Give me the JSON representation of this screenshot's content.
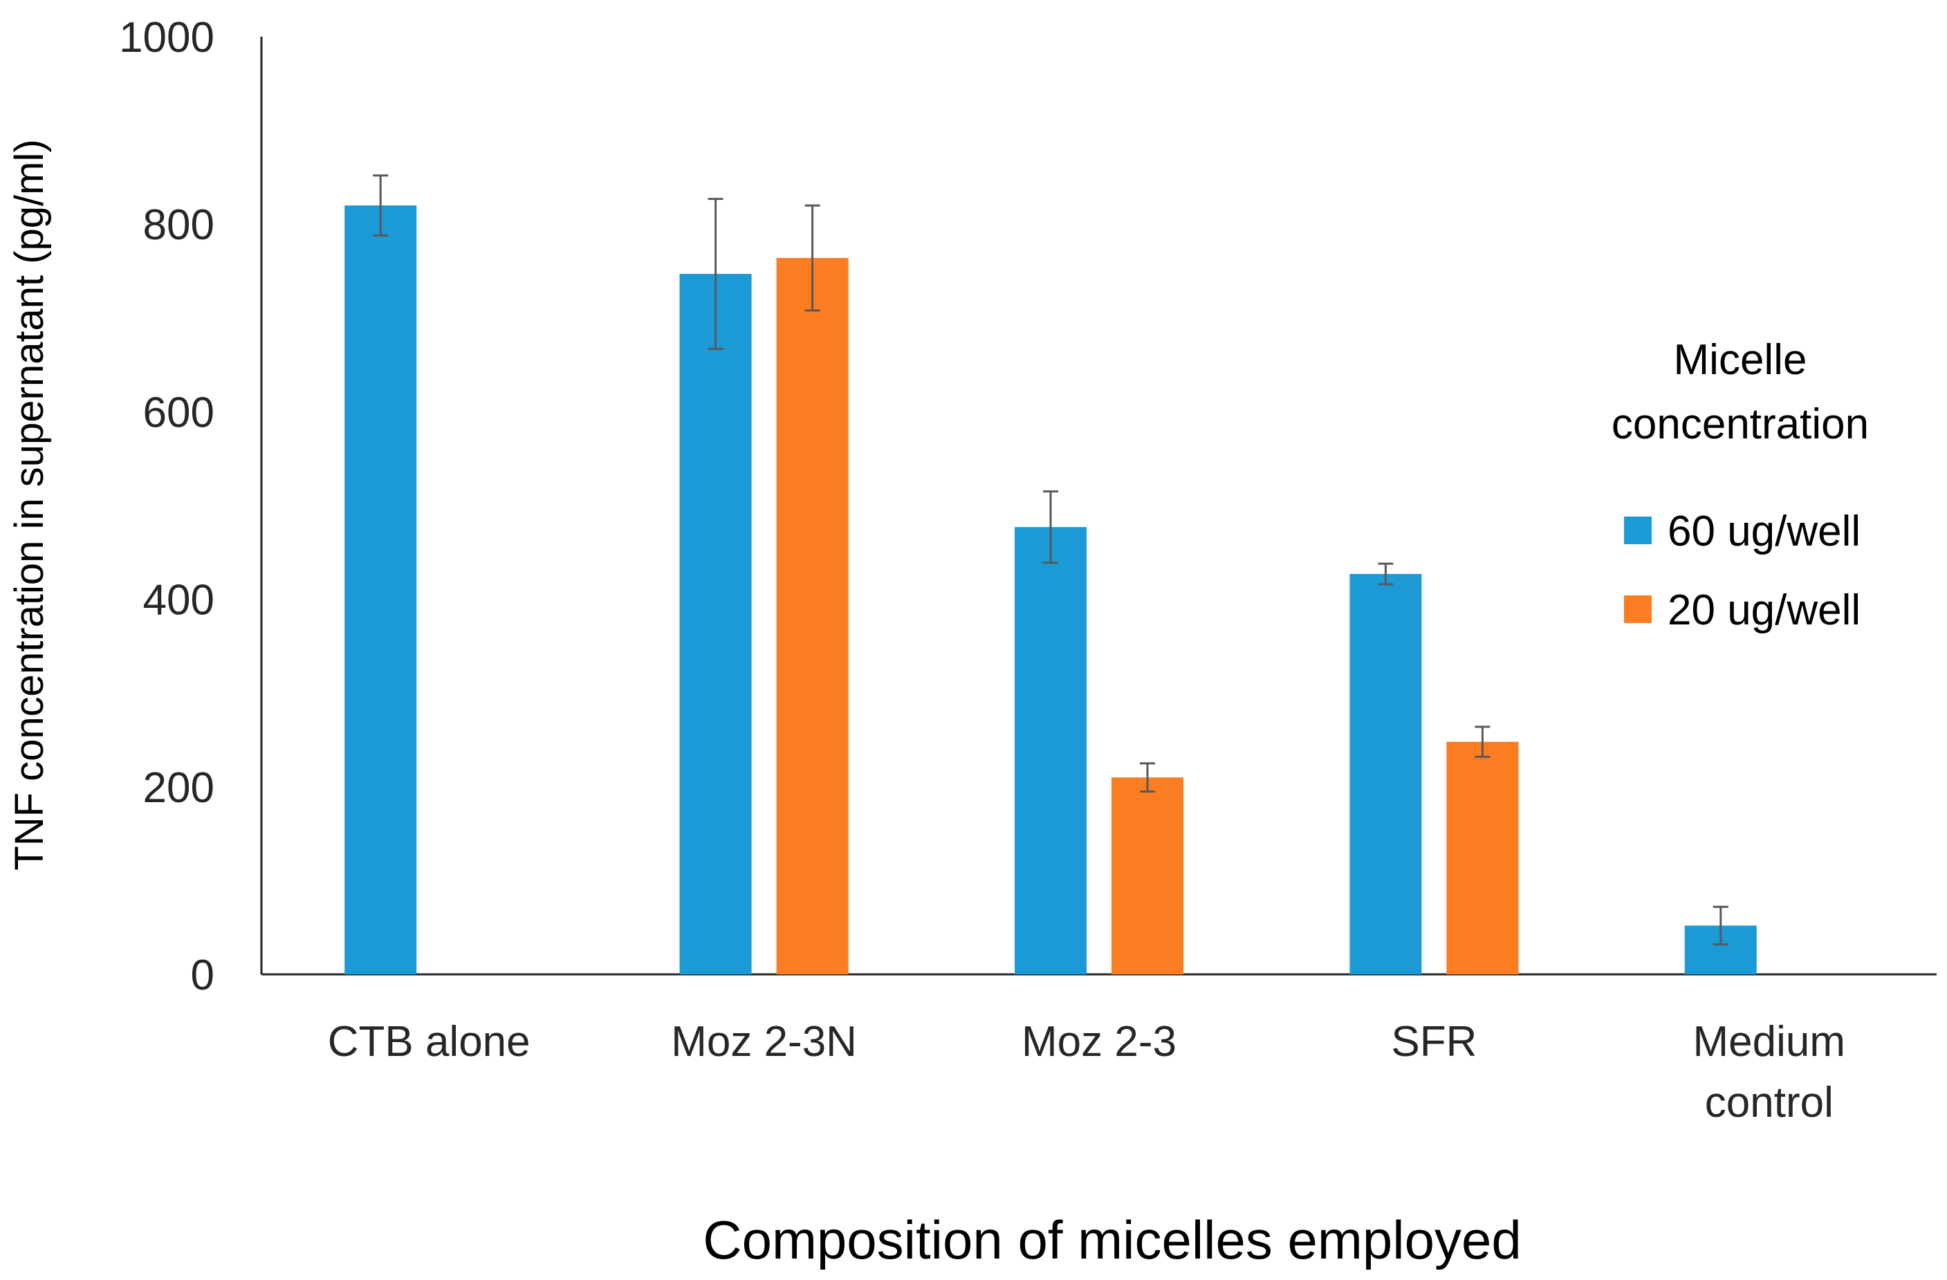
{
  "chart_data": {
    "type": "bar",
    "title": "",
    "xlabel": "Composition of micelles employed",
    "ylabel": "TNF concentration in supernatant (pg/ml)",
    "ylim": [
      0,
      1000
    ],
    "yticks": [
      0,
      200,
      400,
      600,
      800,
      1000
    ],
    "yticks_labels": [
      "0",
      "200",
      "400",
      "600",
      "800",
      "1000"
    ],
    "categories": [
      "CTB alone",
      "Moz 2-3N",
      "Moz 2-3",
      "SFR",
      "Medium control"
    ],
    "category_lines": [
      [
        "CTB alone"
      ],
      [
        "Moz 2-3N"
      ],
      [
        "Moz 2-3"
      ],
      [
        "SFR"
      ],
      [
        "Medium",
        "control"
      ]
    ],
    "series": [
      {
        "name": "60 ug/well",
        "color": "#1b9ad6",
        "values": [
          820,
          747,
          477,
          427,
          52
        ],
        "errors": [
          32,
          80,
          38,
          11,
          20
        ]
      },
      {
        "name": "20 ug/well",
        "color": "#fb7d22",
        "values": [
          null,
          764,
          210,
          248,
          null
        ],
        "errors": [
          null,
          56,
          15,
          16,
          null
        ]
      }
    ],
    "legend": {
      "title_lines": [
        "Micelle",
        "concentration"
      ],
      "placement": "right"
    },
    "grid": false
  }
}
